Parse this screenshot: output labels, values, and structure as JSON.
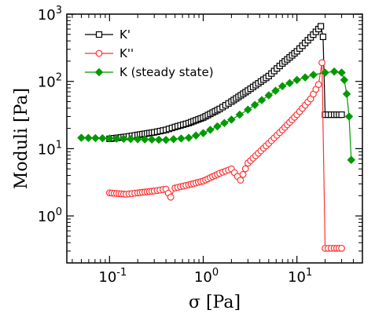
{
  "chart_data": {
    "type": "scatter",
    "title": "",
    "xlabel": "σ [Pa]",
    "ylabel": "Moduli [Pa]",
    "x_scale": "log",
    "y_scale": "log",
    "xlim": [
      0.035,
      50
    ],
    "ylim": [
      0.2,
      1000
    ],
    "x_ticks": [
      {
        "value": 0.1,
        "base": "10",
        "exp": "-1"
      },
      {
        "value": 1,
        "base": "10",
        "exp": "0"
      },
      {
        "value": 10,
        "base": "10",
        "exp": "1"
      }
    ],
    "y_ticks": [
      {
        "value": 1,
        "base": "10",
        "exp": "0"
      },
      {
        "value": 10,
        "base": "10",
        "exp": "1"
      },
      {
        "value": 100,
        "base": "10",
        "exp": "2"
      },
      {
        "value": 1000,
        "base": "10",
        "exp": "3"
      }
    ],
    "grid": false,
    "legend_position": "top-left",
    "series": [
      {
        "name": "K'",
        "color": "#000000",
        "marker": "open-square",
        "x": [
          0.1,
          0.15,
          0.2,
          0.3,
          0.4,
          0.5,
          0.7,
          1.0,
          1.5,
          2.0,
          3.0,
          5.0,
          7.0,
          10,
          14,
          17,
          18,
          19,
          20,
          25,
          30
        ],
        "y": [
          14,
          15,
          16,
          17.5,
          19,
          21,
          24,
          29,
          39,
          50,
          73,
          120,
          185,
          280,
          450,
          600,
          660,
          460,
          32,
          32,
          32
        ]
      },
      {
        "name": "K''",
        "color": "#ff3333",
        "marker": "open-circle",
        "x": [
          0.1,
          0.15,
          0.2,
          0.3,
          0.4,
          0.45,
          0.5,
          0.7,
          1.0,
          1.5,
          2.0,
          2.5,
          3.0,
          5.0,
          7.0,
          10,
          14,
          17,
          18.5,
          20,
          25,
          30
        ],
        "y": [
          2.2,
          2.1,
          2.2,
          2.35,
          2.5,
          1.9,
          2.6,
          2.9,
          3.3,
          4.3,
          5.0,
          3.4,
          6.1,
          12,
          19,
          32,
          55,
          90,
          190,
          0.33,
          0.33,
          0.33
        ]
      },
      {
        "name": "K (steady state)",
        "color": "#009900",
        "marker": "filled-diamond",
        "x": [
          0.05,
          0.1,
          0.2,
          0.4,
          0.7,
          1.0,
          2.0,
          3.0,
          5.0,
          7.0,
          10,
          15,
          20,
          25,
          30,
          32,
          34,
          36,
          38
        ],
        "y": [
          14.5,
          14.2,
          13.8,
          13.5,
          14.5,
          17,
          27,
          38,
          62,
          85,
          105,
          125,
          135,
          140,
          135,
          105,
          65,
          30,
          6.8
        ]
      }
    ]
  }
}
